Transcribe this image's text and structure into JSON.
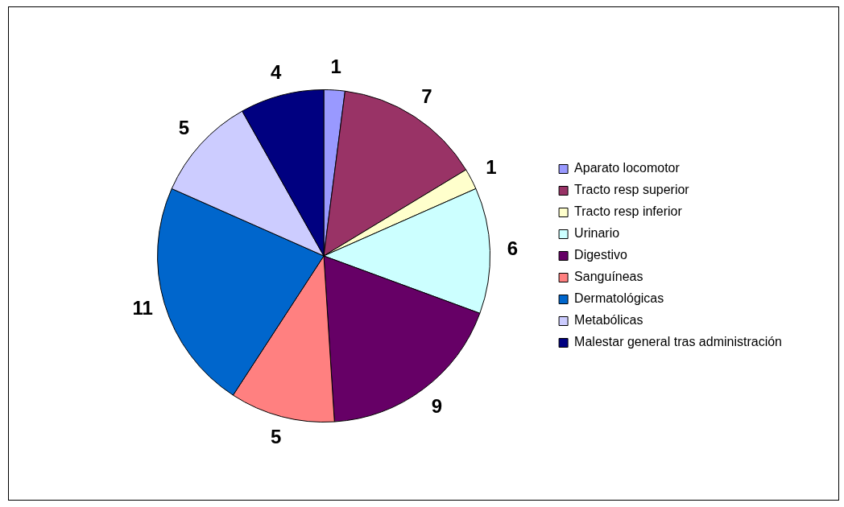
{
  "chart_data": {
    "type": "pie",
    "categories": [
      "Aparato locomotor",
      "Tracto resp superior",
      "Tracto resp inferior",
      "Urinario",
      "Digestivo",
      "Sanguíneas",
      "Dermatológicas",
      "Metabólicas",
      "Malestar general tras administración"
    ],
    "values": [
      1,
      7,
      1,
      6,
      9,
      5,
      11,
      5,
      4
    ],
    "colors": [
      "#9999ff",
      "#993366",
      "#ffffcc",
      "#ccffff",
      "#660066",
      "#ff8080",
      "#0066cc",
      "#ccccff",
      "#000080"
    ],
    "data_labels": true,
    "legend": "right"
  }
}
